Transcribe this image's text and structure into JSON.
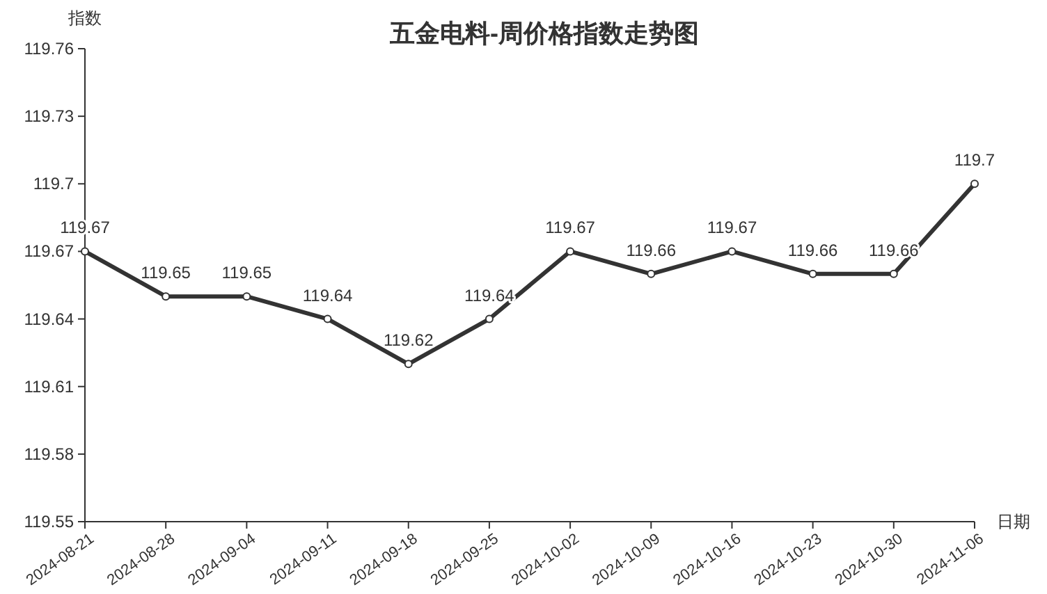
{
  "chart_data": {
    "type": "line",
    "title": "五金电料-周价格指数走势图",
    "xlabel": "日期",
    "ylabel": "指数",
    "categories": [
      "2024-08-21",
      "2024-08-28",
      "2024-09-04",
      "2024-09-11",
      "2024-09-18",
      "2024-09-25",
      "2024-10-02",
      "2024-10-09",
      "2024-10-16",
      "2024-10-23",
      "2024-10-30",
      "2024-11-06"
    ],
    "series": [
      {
        "color": "#333333",
        "values": [
          119.67,
          119.65,
          119.65,
          119.64,
          119.62,
          119.64,
          119.67,
          119.66,
          119.67,
          119.66,
          119.66,
          119.7
        ]
      }
    ],
    "ylim": [
      119.55,
      119.76
    ],
    "yticks": [
      119.55,
      119.58,
      119.61,
      119.64,
      119.67,
      119.7,
      119.73,
      119.76
    ],
    "data_labels": true,
    "marker": "circle",
    "line_style": "solid",
    "grid": false
  }
}
